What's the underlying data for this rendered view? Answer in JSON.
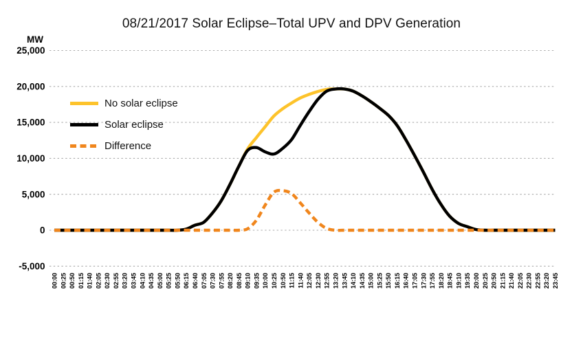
{
  "title": "08/21/2017 Solar Eclipse–Total UPV and DPV Generation",
  "y_axis_unit": "MW",
  "chart_data": {
    "type": "line",
    "title": "08/21/2017 Solar Eclipse–Total UPV and DPV Generation",
    "xlabel": "",
    "ylabel": "MW",
    "ylim": [
      -5000,
      25000
    ],
    "y_ticks": [
      25000,
      20000,
      15000,
      10000,
      5000,
      0,
      -5000
    ],
    "y_tick_labels": [
      "25,000",
      "20,000",
      "15,000",
      "10,000",
      "5,000",
      "0",
      "-5,000"
    ],
    "grid": "horizontal-dashed",
    "grid_color": "#ABABAB",
    "axis_text_color": "#000000",
    "legend_position": "upper-left-inside",
    "categories": [
      "00:00",
      "00:25",
      "00:50",
      "01:15",
      "01:40",
      "02:05",
      "02:30",
      "02:55",
      "03:20",
      "03:45",
      "04:10",
      "04:35",
      "05:00",
      "05:25",
      "05:50",
      "06:15",
      "06:40",
      "07:05",
      "07:30",
      "07:55",
      "08:20",
      "08:45",
      "09:10",
      "09:35",
      "10:00",
      "10:25",
      "10:50",
      "11:15",
      "11:40",
      "12:05",
      "12:30",
      "12:55",
      "13:20",
      "13:45",
      "14:10",
      "14:35",
      "15:00",
      "15:25",
      "15:50",
      "16:15",
      "16:40",
      "17:05",
      "17:30",
      "17:55",
      "18:20",
      "18:45",
      "19:10",
      "19:35",
      "20:00",
      "20:25",
      "20:50",
      "21:15",
      "21:40",
      "22:05",
      "22:30",
      "22:55",
      "23:20",
      "23:45"
    ],
    "series": [
      {
        "name": "No solar eclipse",
        "color": "#FDC32B",
        "style": "solid",
        "values": [
          0,
          0,
          0,
          0,
          0,
          0,
          0,
          0,
          0,
          0,
          0,
          0,
          0,
          0,
          0,
          150,
          700,
          1100,
          2400,
          4100,
          6400,
          8900,
          11300,
          12900,
          14400,
          15900,
          16900,
          17700,
          18400,
          18900,
          19300,
          19600,
          19650,
          19650,
          19350,
          18700,
          17900,
          17000,
          16000,
          14600,
          12600,
          10400,
          8100,
          5700,
          3600,
          1950,
          950,
          500,
          100,
          0,
          0,
          0,
          0,
          0,
          0,
          0,
          0,
          0
        ]
      },
      {
        "name": "Solar eclipse",
        "color": "#000000",
        "style": "solid",
        "values": [
          0,
          0,
          0,
          0,
          0,
          0,
          0,
          0,
          0,
          0,
          0,
          0,
          0,
          0,
          0,
          150,
          700,
          1100,
          2400,
          4100,
          6400,
          8900,
          11100,
          11500,
          10900,
          10600,
          11400,
          12600,
          14600,
          16500,
          18200,
          19350,
          19650,
          19650,
          19350,
          18700,
          17900,
          17000,
          16000,
          14600,
          12600,
          10400,
          8100,
          5700,
          3600,
          1950,
          950,
          500,
          100,
          0,
          0,
          0,
          0,
          0,
          0,
          0,
          0,
          0
        ]
      },
      {
        "name": "Difference",
        "color": "#F0861D",
        "style": "dashed",
        "values": [
          0,
          0,
          0,
          0,
          0,
          0,
          0,
          0,
          0,
          0,
          0,
          0,
          0,
          0,
          0,
          0,
          0,
          0,
          0,
          0,
          0,
          0,
          200,
          1400,
          3500,
          5300,
          5500,
          5100,
          3800,
          2400,
          1100,
          250,
          0,
          0,
          0,
          0,
          0,
          0,
          0,
          0,
          0,
          0,
          0,
          0,
          0,
          0,
          0,
          0,
          0,
          0,
          0,
          0,
          0,
          0,
          0,
          0,
          0,
          0
        ]
      }
    ]
  }
}
